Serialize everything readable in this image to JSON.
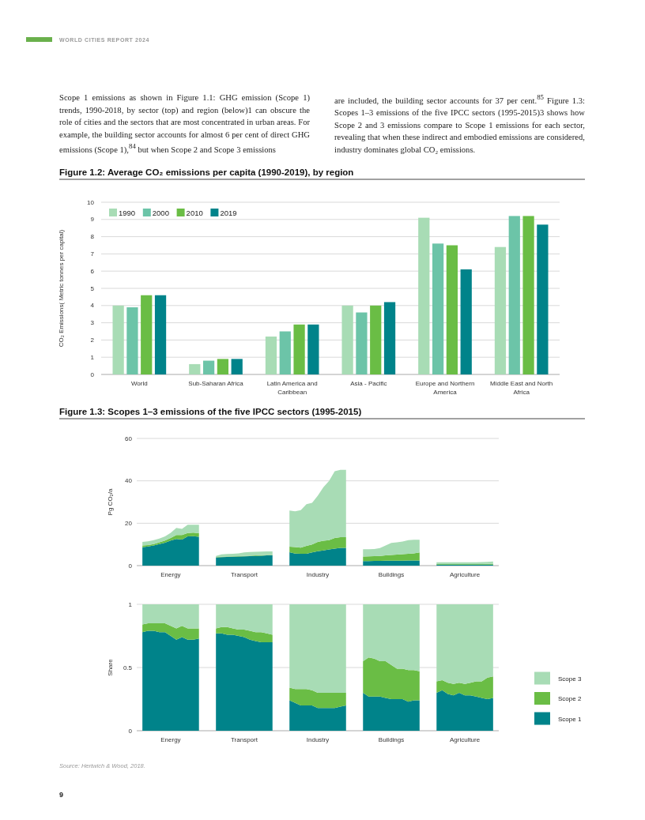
{
  "chart_data": [
    {
      "type": "other",
      "annotations": [
        "WORLD CITIES REPORT 2024",
        "Scope 1 emissions as shown in Figure 1.1: GHG emission (Scope 1) trends, 1990-2018, by sector (top) and region (below)1 can obscure the role of cities and the sectors that are most concentrated in urban areas. For example, the building sector accounts for almost 6 per cent of direct GHG emissions (Scope 1),$^{84}$ but when Scope 2 and Scope 3 emissions",
        "are included, the building sector accounts for 37 per cent.$^{85}$ Figure 1.3: Scopes 1–3 emissions of the five IPCC sectors (1995-2015)3 shows how Scope 2 and 3 emissions compare to Scope 1 emissions for each sector, revealing that when these indirect and embodied emissions are considered, industry dominates global CO₂ emissions."
      ]
    },
    {
      "type": "bar",
      "title": "Figure 1.2: Average CO₂ emissions per capita (1990-2019), by region",
      "ylabel": "CO₂ Emissions( Metric tonnes per capital)",
      "categories": [
        "World",
        "Sub-Saharan Africa",
        "Latin America and Caribbean",
        "Asia - Pacific",
        "Europe and Northern America",
        "Middle East and North Africa"
      ],
      "series": [
        {
          "name": "1990",
          "color": "#a8dcb5",
          "values": [
            4.0,
            0.6,
            2.2,
            4.0,
            9.1,
            7.4
          ]
        },
        {
          "name": "2000",
          "color": "#6cc4a8",
          "values": [
            3.9,
            0.8,
            2.5,
            3.6,
            7.6,
            9.2
          ]
        },
        {
          "name": "2010",
          "color": "#6abd45",
          "values": [
            4.6,
            0.9,
            2.9,
            4.0,
            7.5,
            9.2
          ]
        },
        {
          "name": "2019",
          "color": "#00838a",
          "values": [
            4.6,
            0.9,
            2.9,
            4.2,
            6.1,
            8.7
          ]
        }
      ],
      "ylim": [
        0,
        10
      ],
      "yticks": [
        0,
        1,
        2,
        3,
        4,
        5,
        6,
        7,
        8,
        9,
        10
      ],
      "grid": "y",
      "legend": "top left"
    },
    {
      "type": "area",
      "stacked": true,
      "title": "Figure 1.3: Scopes 1–3 emissions of the five IPCC sectors (1995-2015)",
      "ylabel": "Pg CO₂/a",
      "categories": [
        null,
        null,
        null,
        null,
        null,
        "Energy",
        null,
        null,
        null,
        null,
        null,
        null,
        null,
        null,
        null,
        null,
        null,
        null,
        "Transport",
        null,
        null,
        null,
        null,
        null,
        null,
        null,
        null,
        null,
        null,
        null,
        null,
        "Industry",
        null,
        null,
        null,
        null,
        null,
        null,
        null,
        null,
        null,
        null,
        null,
        null,
        "Buildings",
        null,
        null,
        null,
        null,
        null,
        null,
        null,
        null,
        null,
        null,
        null,
        null,
        "Agriculture",
        null,
        null,
        null,
        null,
        null
      ],
      "series": [
        {
          "color": "#00838a",
          "values": [
            8.7,
            9.0,
            9.5,
            10.2,
            10.8,
            11.8,
            12.6,
            12.3,
            13.8,
            13.9,
            13.6,
            null,
            null,
            3.8,
            4.0,
            4.1,
            4.2,
            4.3,
            4.4,
            4.5,
            4.6,
            4.7,
            4.8,
            4.8,
            null,
            null,
            6.3,
            5.7,
            5.6,
            5.6,
            6.2,
            6.8,
            7.2,
            7.6,
            8.0,
            8.4,
            8.4,
            null,
            null,
            2.1,
            2.1,
            2.2,
            2.2,
            2.3,
            2.3,
            2.3,
            2.3,
            2.4,
            2.4,
            2.4,
            null,
            null,
            0.5,
            0.5,
            0.5,
            0.5,
            0.5,
            0.5,
            0.5,
            0.5,
            0.5,
            0.5,
            0.5
          ]
        },
        {
          "color": "#6abd45",
          "values": [
            0.8,
            0.7,
            0.7,
            0.8,
            1.0,
            1.2,
            1.8,
            2.1,
            1.6,
            1.7,
            1.7,
            null,
            null,
            0.2,
            0.2,
            0.2,
            0.2,
            0.2,
            0.2,
            0.2,
            0.2,
            0.2,
            0.2,
            0.2,
            null,
            null,
            2.6,
            3.1,
            2.9,
            3.7,
            3.8,
            4.4,
            4.5,
            4.4,
            5.0,
            5.0,
            5.0,
            null,
            null,
            2.2,
            2.3,
            2.3,
            2.4,
            2.5,
            2.7,
            2.9,
            3.1,
            3.2,
            3.4,
            3.8,
            null,
            null,
            0.2,
            0.2,
            0.2,
            0.2,
            0.2,
            0.2,
            0.2,
            0.2,
            0.2,
            0.3,
            0.3
          ]
        },
        {
          "color": "#a8dcb5",
          "values": [
            1.7,
            1.8,
            1.8,
            1.8,
            2.0,
            2.5,
            3.4,
            2.9,
            3.9,
            3.7,
            4.0,
            null,
            null,
            0.6,
            1.1,
            1.2,
            1.2,
            1.3,
            1.6,
            1.7,
            1.7,
            1.7,
            1.7,
            1.7,
            null,
            null,
            17.1,
            16.8,
            17.7,
            19.7,
            19.6,
            21.8,
            25.3,
            28.0,
            31.5,
            31.8,
            31.8,
            null,
            null,
            3.4,
            3.3,
            3.3,
            3.7,
            4.7,
            5.7,
            5.8,
            6.0,
            6.4,
            6.4,
            6.0,
            null,
            null,
            0.9,
            0.9,
            0.9,
            0.9,
            0.9,
            0.9,
            0.9,
            0.9,
            1.0,
            1.0,
            1.2
          ]
        }
      ],
      "ylim": [
        0,
        60
      ],
      "yticks": [
        0,
        20,
        40,
        60
      ],
      "grid": "y"
    },
    {
      "type": "area",
      "stacked": true,
      "ylabel": "Share",
      "categories": [
        null,
        null,
        null,
        null,
        null,
        "Energy",
        null,
        null,
        null,
        null,
        null,
        null,
        null,
        null,
        null,
        null,
        null,
        null,
        "Transport",
        null,
        null,
        null,
        null,
        null,
        null,
        null,
        null,
        null,
        null,
        null,
        null,
        "Industry",
        null,
        null,
        null,
        null,
        null,
        null,
        null,
        null,
        null,
        null,
        null,
        null,
        "Buildings",
        null,
        null,
        null,
        null,
        null,
        null,
        null,
        null,
        null,
        null,
        null,
        null,
        "Agriculture",
        null,
        null,
        null,
        null,
        null
      ],
      "series": [
        {
          "name": "Scope 1",
          "color": "#00838a",
          "values": [
            0.78,
            0.79,
            0.79,
            0.78,
            0.78,
            0.75,
            0.72,
            0.74,
            0.72,
            0.72,
            0.73,
            null,
            null,
            0.77,
            0.77,
            0.76,
            0.76,
            0.75,
            0.74,
            0.72,
            0.71,
            0.7,
            0.7,
            0.7,
            null,
            null,
            0.24,
            0.22,
            0.2,
            0.2,
            0.2,
            0.18,
            0.18,
            0.18,
            0.18,
            0.19,
            0.2,
            null,
            null,
            0.3,
            0.27,
            0.27,
            0.27,
            0.26,
            0.25,
            0.25,
            0.25,
            0.23,
            0.24,
            0.24,
            null,
            null,
            0.3,
            0.32,
            0.29,
            0.28,
            0.3,
            0.28,
            0.28,
            0.27,
            0.26,
            0.25,
            0.26
          ]
        },
        {
          "name": "Scope 2",
          "color": "#6abd45",
          "values": [
            0.06,
            0.06,
            0.06,
            0.07,
            0.07,
            0.08,
            0.09,
            0.09,
            0.09,
            0.09,
            0.08,
            null,
            null,
            0.04,
            0.05,
            0.06,
            0.05,
            0.05,
            0.06,
            0.07,
            0.07,
            0.08,
            0.07,
            0.06,
            null,
            null,
            0.1,
            0.11,
            0.13,
            0.13,
            0.12,
            0.12,
            0.12,
            0.12,
            0.12,
            0.11,
            0.1,
            null,
            null,
            0.25,
            0.31,
            0.3,
            0.28,
            0.29,
            0.27,
            0.24,
            0.24,
            0.25,
            0.24,
            0.23,
            null,
            null,
            0.09,
            0.08,
            0.09,
            0.09,
            0.08,
            0.09,
            0.1,
            0.12,
            0.13,
            0.17,
            0.17
          ]
        },
        {
          "name": "Scope 3",
          "color": "#a8dcb5",
          "values": [
            0.16,
            0.15,
            0.15,
            0.15,
            0.15,
            0.17,
            0.19,
            0.17,
            0.19,
            0.19,
            0.19,
            null,
            null,
            0.19,
            0.18,
            0.18,
            0.19,
            0.2,
            0.2,
            0.21,
            0.22,
            0.22,
            0.23,
            0.24,
            null,
            null,
            0.66,
            0.67,
            0.67,
            0.67,
            0.68,
            0.7,
            0.7,
            0.7,
            0.7,
            0.7,
            0.7,
            null,
            null,
            0.45,
            0.42,
            0.43,
            0.45,
            0.45,
            0.48,
            0.51,
            0.51,
            0.52,
            0.52,
            0.53,
            null,
            null,
            0.61,
            0.6,
            0.62,
            0.63,
            0.62,
            0.63,
            0.62,
            0.61,
            0.61,
            0.58,
            0.57
          ]
        }
      ],
      "ylim": [
        0,
        1
      ],
      "yticks": [
        0,
        0.5,
        1
      ],
      "grid": "y",
      "legend": "right",
      "annotations": [
        "Source: Hertwich & Wood, 2018.",
        "9"
      ]
    }
  ]
}
